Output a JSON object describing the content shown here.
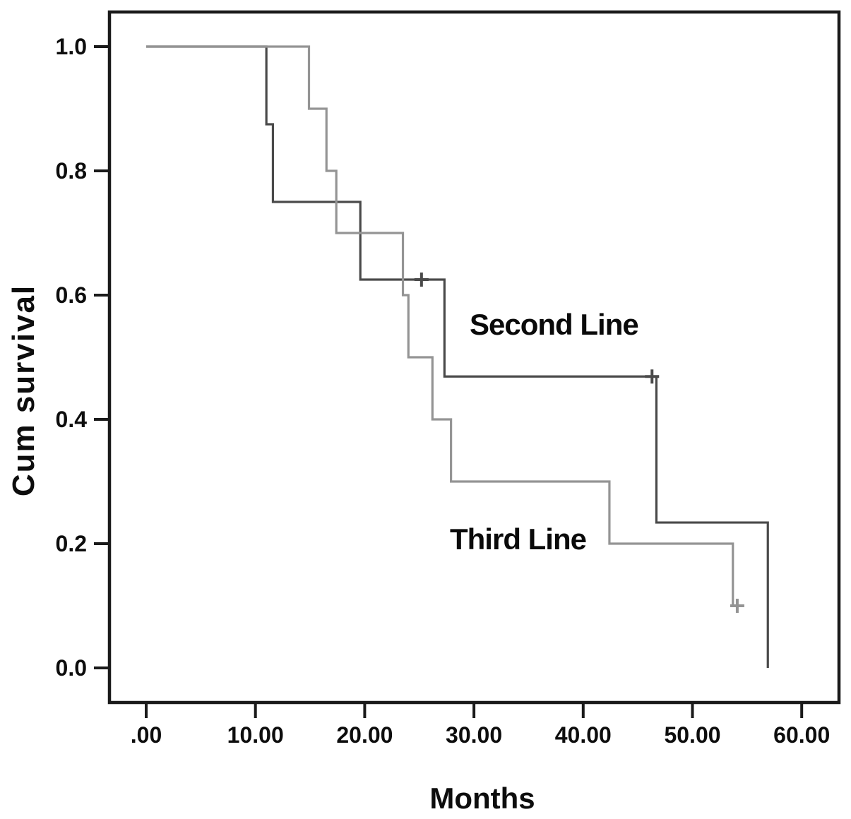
{
  "figure": {
    "background": "#ffffff",
    "frame_color": "#1a1a1a",
    "text_color": "#0d0d0d"
  },
  "chart_data": {
    "type": "line",
    "subtype": "kaplan-meier-step",
    "title": "",
    "xlabel": "Months",
    "ylabel": "Cum survival",
    "xlim": [
      0,
      60
    ],
    "ylim": [
      0.0,
      1.0
    ],
    "grid": false,
    "legend_position": "inline-annotations",
    "x_ticks": [
      {
        "value": 0,
        "label": ".00"
      },
      {
        "value": 10,
        "label": "10.00"
      },
      {
        "value": 20,
        "label": "20.00"
      },
      {
        "value": 30,
        "label": "30.00"
      },
      {
        "value": 40,
        "label": "40.00"
      },
      {
        "value": 50,
        "label": "50.00"
      },
      {
        "value": 60,
        "label": "60.00"
      }
    ],
    "y_ticks": [
      {
        "value": 0.0,
        "label": "0.0"
      },
      {
        "value": 0.2,
        "label": "0.2"
      },
      {
        "value": 0.4,
        "label": "0.4"
      },
      {
        "value": 0.6,
        "label": "0.6"
      },
      {
        "value": 0.8,
        "label": "0.8"
      },
      {
        "value": 1.0,
        "label": "1.0"
      }
    ],
    "series": [
      {
        "name": "Second Line",
        "color": "#4a4a4a",
        "steps": [
          [
            0,
            1.0
          ],
          [
            11.0,
            1.0
          ],
          [
            11.0,
            0.875
          ],
          [
            11.6,
            0.875
          ],
          [
            11.6,
            0.75
          ],
          [
            19.6,
            0.75
          ],
          [
            19.6,
            0.625
          ],
          [
            27.3,
            0.625
          ],
          [
            27.3,
            0.469
          ],
          [
            46.7,
            0.469
          ],
          [
            46.7,
            0.234
          ],
          [
            56.9,
            0.234
          ],
          [
            56.9,
            0.0
          ]
        ],
        "censor_marks": [
          [
            25.2,
            0.625
          ],
          [
            46.3,
            0.469
          ]
        ]
      },
      {
        "name": "Third Line",
        "color": "#949494",
        "steps": [
          [
            0,
            1.0
          ],
          [
            14.9,
            1.0
          ],
          [
            14.9,
            0.9
          ],
          [
            16.5,
            0.9
          ],
          [
            16.5,
            0.8
          ],
          [
            17.4,
            0.8
          ],
          [
            17.4,
            0.7
          ],
          [
            23.5,
            0.7
          ],
          [
            23.5,
            0.6
          ],
          [
            24.0,
            0.6
          ],
          [
            24.0,
            0.5
          ],
          [
            26.2,
            0.5
          ],
          [
            26.2,
            0.4
          ],
          [
            27.9,
            0.4
          ],
          [
            27.9,
            0.3
          ],
          [
            42.4,
            0.3
          ],
          [
            42.4,
            0.2
          ],
          [
            53.7,
            0.2
          ],
          [
            53.7,
            0.1
          ],
          [
            54.4,
            0.1
          ]
        ],
        "censor_marks": [
          [
            54.1,
            0.1
          ]
        ]
      }
    ],
    "annotations": [
      {
        "text": "Second Line"
      },
      {
        "text": "Third Line"
      }
    ]
  }
}
